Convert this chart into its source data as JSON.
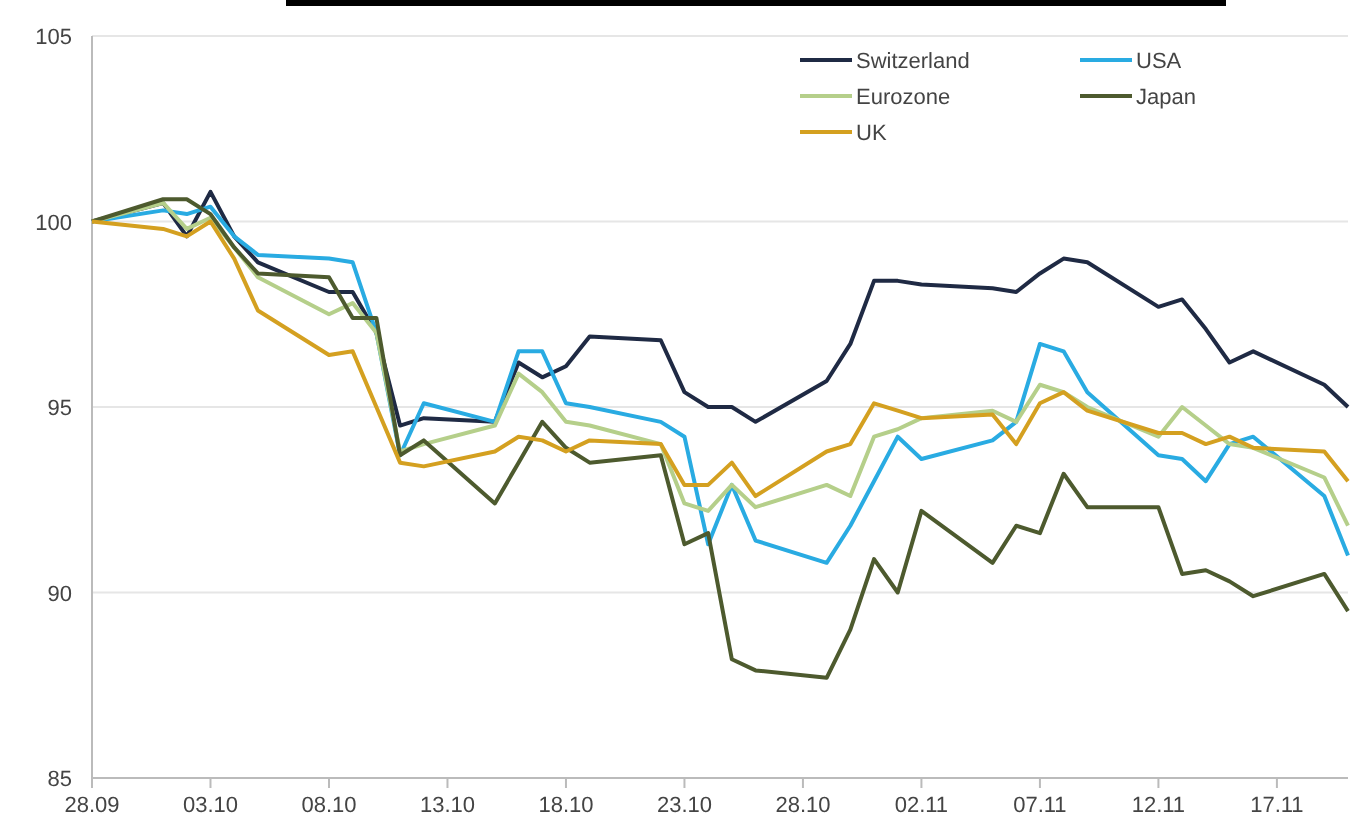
{
  "chart_data": {
    "type": "line",
    "x": [
      "--09-28",
      "--10-01",
      "--10-02",
      "--10-03",
      "--10-04",
      "--10-05",
      "--10-08",
      "--10-09",
      "--10-10",
      "--10-11",
      "--10-12",
      "--10-15",
      "--10-16",
      "--10-17",
      "--10-18",
      "--10-19",
      "--10-22",
      "--10-23",
      "--10-24",
      "--10-25",
      "--10-26",
      "--10-29",
      "--10-30",
      "--10-31",
      "--11-01",
      "--11-02",
      "--11-05",
      "--11-06",
      "--11-07",
      "--11-08",
      "--11-09",
      "--11-12",
      "--11-13",
      "--11-14",
      "--11-15",
      "--11-16",
      "--11-19",
      "--11-20"
    ],
    "series": [
      {
        "name": "Switzerland",
        "color": "#1f2a44",
        "values": [
          100,
          100.5,
          99.6,
          100.8,
          99.6,
          98.9,
          98.1,
          98.1,
          97.0,
          94.5,
          94.7,
          94.6,
          96.2,
          95.8,
          96.1,
          96.9,
          96.8,
          95.4,
          95.0,
          95.0,
          94.6,
          95.7,
          96.7,
          98.4,
          98.4,
          98.3,
          98.2,
          98.1,
          98.6,
          99.0,
          98.9,
          97.7,
          97.9,
          97.1,
          96.2,
          96.5,
          95.6,
          95.0
        ]
      },
      {
        "name": "USA",
        "color": "#29abe2",
        "values": [
          100,
          100.3,
          100.2,
          100.4,
          99.6,
          99.1,
          99.0,
          98.9,
          97.0,
          93.7,
          95.1,
          94.6,
          96.5,
          96.5,
          95.1,
          95.0,
          94.6,
          94.2,
          91.3,
          92.9,
          91.4,
          90.8,
          91.8,
          93.0,
          94.2,
          93.6,
          94.1,
          94.6,
          96.7,
          96.5,
          95.4,
          93.7,
          93.6,
          93.0,
          94.0,
          94.2,
          92.6,
          91.0
        ]
      },
      {
        "name": "Eurozone",
        "color": "#b5cf8a",
        "values": [
          100,
          100.5,
          99.8,
          100.1,
          99.3,
          98.5,
          97.5,
          97.8,
          97.0,
          93.8,
          94.0,
          94.5,
          95.9,
          95.4,
          94.6,
          94.5,
          94.0,
          92.4,
          92.2,
          92.9,
          92.3,
          92.9,
          92.6,
          94.2,
          94.4,
          94.7,
          94.9,
          94.6,
          95.6,
          95.4,
          95.0,
          94.2,
          95.0,
          94.5,
          94.0,
          93.9,
          93.1,
          91.8
        ]
      },
      {
        "name": "Japan",
        "color": "#4d5a2e",
        "values": [
          100,
          100.6,
          100.6,
          100.2,
          99.3,
          98.6,
          98.5,
          97.4,
          97.4,
          93.7,
          94.1,
          92.4,
          93.5,
          94.6,
          93.9,
          93.5,
          93.7,
          91.3,
          91.6,
          88.2,
          87.9,
          87.7,
          89.0,
          90.9,
          90.0,
          92.2,
          90.8,
          91.8,
          91.6,
          93.2,
          92.3,
          92.3,
          90.5,
          90.6,
          90.3,
          89.9,
          90.5,
          89.5
        ]
      },
      {
        "name": "UK",
        "color": "#d4a020",
        "values": [
          100,
          99.8,
          99.6,
          100.0,
          99.0,
          97.6,
          96.4,
          96.5,
          95.0,
          93.5,
          93.4,
          93.8,
          94.2,
          94.1,
          93.8,
          94.1,
          94.0,
          92.9,
          92.9,
          93.5,
          92.6,
          93.8,
          94.0,
          95.1,
          94.9,
          94.7,
          94.8,
          94.0,
          95.1,
          95.4,
          94.9,
          94.3,
          94.3,
          94.0,
          94.2,
          93.9,
          93.8,
          93.0
        ]
      }
    ],
    "xlim": [
      "--09-28",
      "--11-20"
    ],
    "xticks": [
      {
        "value": "--09-28",
        "label": "28.09"
      },
      {
        "value": "--10-03",
        "label": "03.10"
      },
      {
        "value": "--10-08",
        "label": "08.10"
      },
      {
        "value": "--10-13",
        "label": "13.10"
      },
      {
        "value": "--10-18",
        "label": "18.10"
      },
      {
        "value": "--10-23",
        "label": "23.10"
      },
      {
        "value": "--10-28",
        "label": "28.10"
      },
      {
        "value": "--11-02",
        "label": "02.11"
      },
      {
        "value": "--11-07",
        "label": "07.11"
      },
      {
        "value": "--11-12",
        "label": "12.11"
      },
      {
        "value": "--11-17",
        "label": "17.11"
      }
    ],
    "ylim": [
      85,
      105
    ],
    "yticks": [
      85,
      90,
      95,
      100,
      105
    ],
    "grid": "y",
    "legend": "top right",
    "marker": "none",
    "line_style": "solid"
  }
}
